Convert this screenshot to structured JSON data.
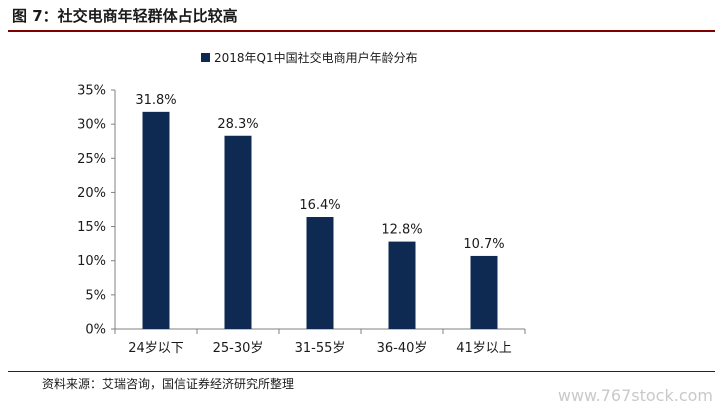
{
  "header": {
    "title": "图 7：社交电商年轻群体占比较高"
  },
  "source": "资料来源：艾瑞咨询，国信证券经济研究所整理",
  "watermark": "www.767stock.com",
  "colors": {
    "bar": "#0e2a52",
    "rule": "#7f0000",
    "axis": "#808080"
  },
  "chart_data": {
    "type": "bar",
    "title": "",
    "xlabel": "",
    "ylabel": "",
    "categories": [
      "24岁以下",
      "25-30岁",
      "31-55岁",
      "36-40岁",
      "41岁以上"
    ],
    "series": [
      {
        "name": "2018年Q1中国社交电商用户年龄分布",
        "values": [
          31.8,
          28.3,
          16.4,
          12.8,
          10.7
        ]
      }
    ],
    "data_labels": [
      "31.8%",
      "28.3%",
      "16.4%",
      "12.8%",
      "10.7%"
    ],
    "ylim": [
      0,
      35
    ],
    "yticks": [
      "0%",
      "5%",
      "10%",
      "15%",
      "20%",
      "25%",
      "30%",
      "35%"
    ],
    "legend": "top-center",
    "grid": false
  }
}
